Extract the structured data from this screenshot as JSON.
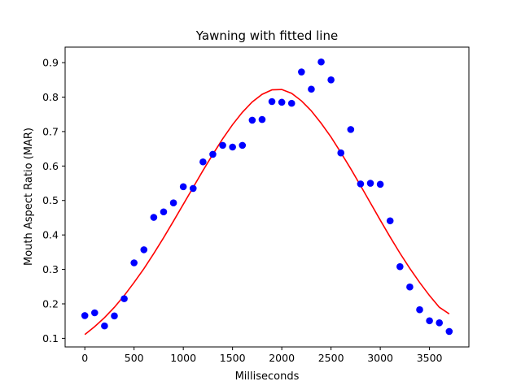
{
  "chart_data": {
    "type": "scatter",
    "title": "Yawning with fitted line",
    "xlabel": "Milliseconds",
    "ylabel": "Mouth Aspect Ratio (MAR)",
    "xlim": [
      -200,
      3900
    ],
    "ylim": [
      0.075,
      0.945
    ],
    "x_ticks": [
      0,
      500,
      1000,
      1500,
      2000,
      2500,
      3000,
      3500
    ],
    "x_tick_labels": [
      "0",
      "500",
      "1000",
      "1500",
      "2000",
      "2500",
      "3000",
      "3500"
    ],
    "y_ticks": [
      0.1,
      0.2,
      0.3,
      0.4,
      0.5,
      0.6,
      0.7,
      0.8,
      0.9
    ],
    "y_tick_labels": [
      "0.1",
      "0.2",
      "0.3",
      "0.4",
      "0.5",
      "0.6",
      "0.7",
      "0.8",
      "0.9"
    ],
    "grid": false,
    "points": {
      "color": "#0000ff",
      "x": [
        0,
        100,
        200,
        300,
        400,
        500,
        600,
        700,
        800,
        900,
        1000,
        1100,
        1200,
        1300,
        1400,
        1500,
        1600,
        1700,
        1800,
        1900,
        2000,
        2100,
        2200,
        2300,
        2400,
        2500,
        2600,
        2700,
        2800,
        2900,
        3000,
        3100,
        3200,
        3300,
        3400,
        3500,
        3600,
        3700
      ],
      "y": [
        0.166,
        0.174,
        0.136,
        0.165,
        0.215,
        0.319,
        0.357,
        0.451,
        0.467,
        0.493,
        0.54,
        0.535,
        0.612,
        0.634,
        0.66,
        0.655,
        0.66,
        0.733,
        0.735,
        0.787,
        0.785,
        0.782,
        0.873,
        0.823,
        0.902,
        0.85,
        0.638,
        0.706,
        0.548,
        0.55,
        0.547,
        0.441,
        0.308,
        0.249,
        0.183,
        0.151,
        0.145,
        0.12
      ]
    },
    "fit_line": {
      "color": "#ff0000",
      "x": [
        0,
        100,
        200,
        300,
        400,
        500,
        600,
        700,
        800,
        900,
        1000,
        1100,
        1200,
        1300,
        1400,
        1500,
        1600,
        1700,
        1800,
        1900,
        2000,
        2100,
        2200,
        2300,
        2400,
        2500,
        2600,
        2700,
        2800,
        2900,
        3000,
        3100,
        3200,
        3300,
        3400,
        3500,
        3600,
        3700
      ],
      "y": [
        0.111,
        0.134,
        0.16,
        0.19,
        0.224,
        0.262,
        0.302,
        0.346,
        0.392,
        0.44,
        0.489,
        0.538,
        0.587,
        0.634,
        0.679,
        0.72,
        0.756,
        0.786,
        0.808,
        0.821,
        0.822,
        0.811,
        0.789,
        0.76,
        0.724,
        0.684,
        0.639,
        0.592,
        0.543,
        0.493,
        0.443,
        0.394,
        0.347,
        0.303,
        0.262,
        0.224,
        0.19,
        0.171
      ]
    }
  }
}
